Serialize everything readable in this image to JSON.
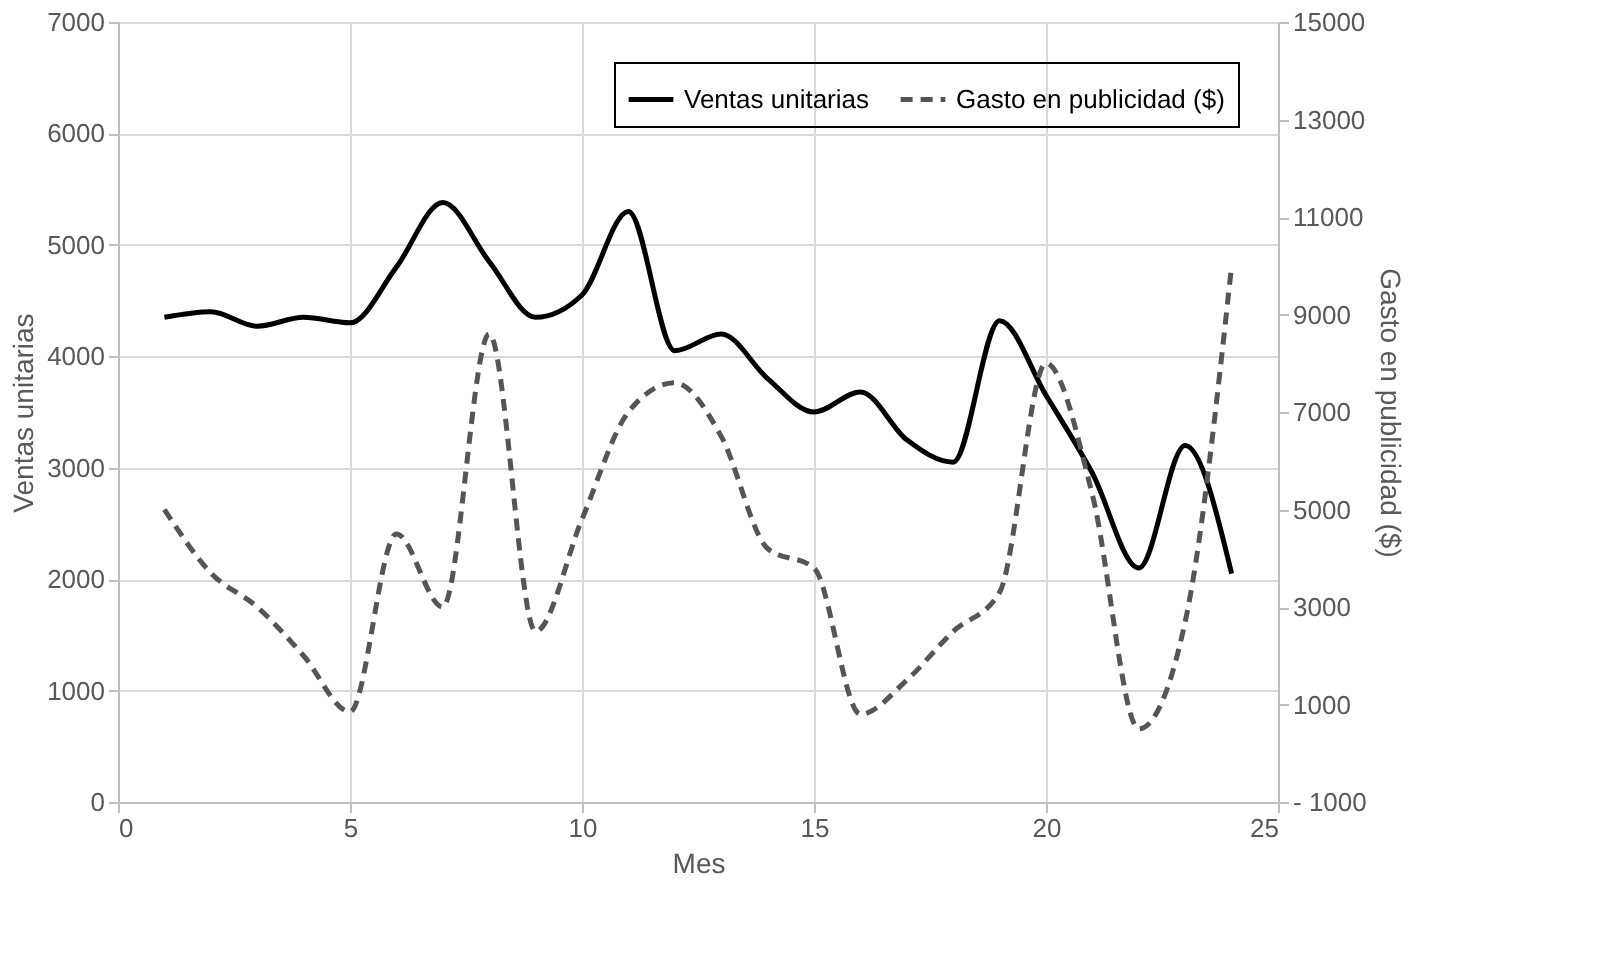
{
  "chart_data": {
    "type": "line",
    "xlabel": "Mes",
    "ylabel": "Ventas unitarias",
    "y2label": "Gasto en publicidad ($)",
    "x": [
      1,
      2,
      3,
      4,
      5,
      6,
      7,
      8,
      9,
      10,
      11,
      12,
      13,
      14,
      15,
      16,
      17,
      18,
      19,
      20,
      21,
      22,
      23,
      24
    ],
    "series": [
      {
        "name": "Ventas unitarias",
        "color": "#000000",
        "line_style": "solid",
        "values": [
          4350,
          4400,
          4270,
          4350,
          4300,
          4800,
          5380,
          4850,
          4350,
          4550,
          5300,
          4050,
          4200,
          3800,
          3500,
          3680,
          3250,
          3050,
          4320,
          3650,
          2950,
          2100,
          3200,
          2050
        ]
      },
      {
        "name": "Gasto en publicidad ($)",
        "color": "#555555",
        "line_style": "dashed",
        "axis": "y2",
        "values": [
          5000,
          3700,
          3000,
          2000,
          850,
          4500,
          3000,
          8600,
          2500,
          4800,
          7000,
          7600,
          6500,
          4200,
          3800,
          800,
          1500,
          2500,
          3300,
          8000,
          5300,
          500,
          2700,
          10000
        ]
      }
    ],
    "xlim": [
      0,
      25
    ],
    "xticks": [
      0,
      5,
      10,
      15,
      20,
      25
    ],
    "ylim": [
      0,
      7000
    ],
    "yticks": [
      0,
      1000,
      2000,
      3000,
      4000,
      5000,
      6000,
      7000
    ],
    "y2lim": [
      -1000,
      15000
    ],
    "y2ticks": [
      {
        "value": -1000,
        "label": "- 1000"
      },
      1000,
      3000,
      5000,
      7000,
      9000,
      11000,
      13000,
      15000
    ],
    "grid": true,
    "legend": "top right",
    "marker": "none"
  }
}
